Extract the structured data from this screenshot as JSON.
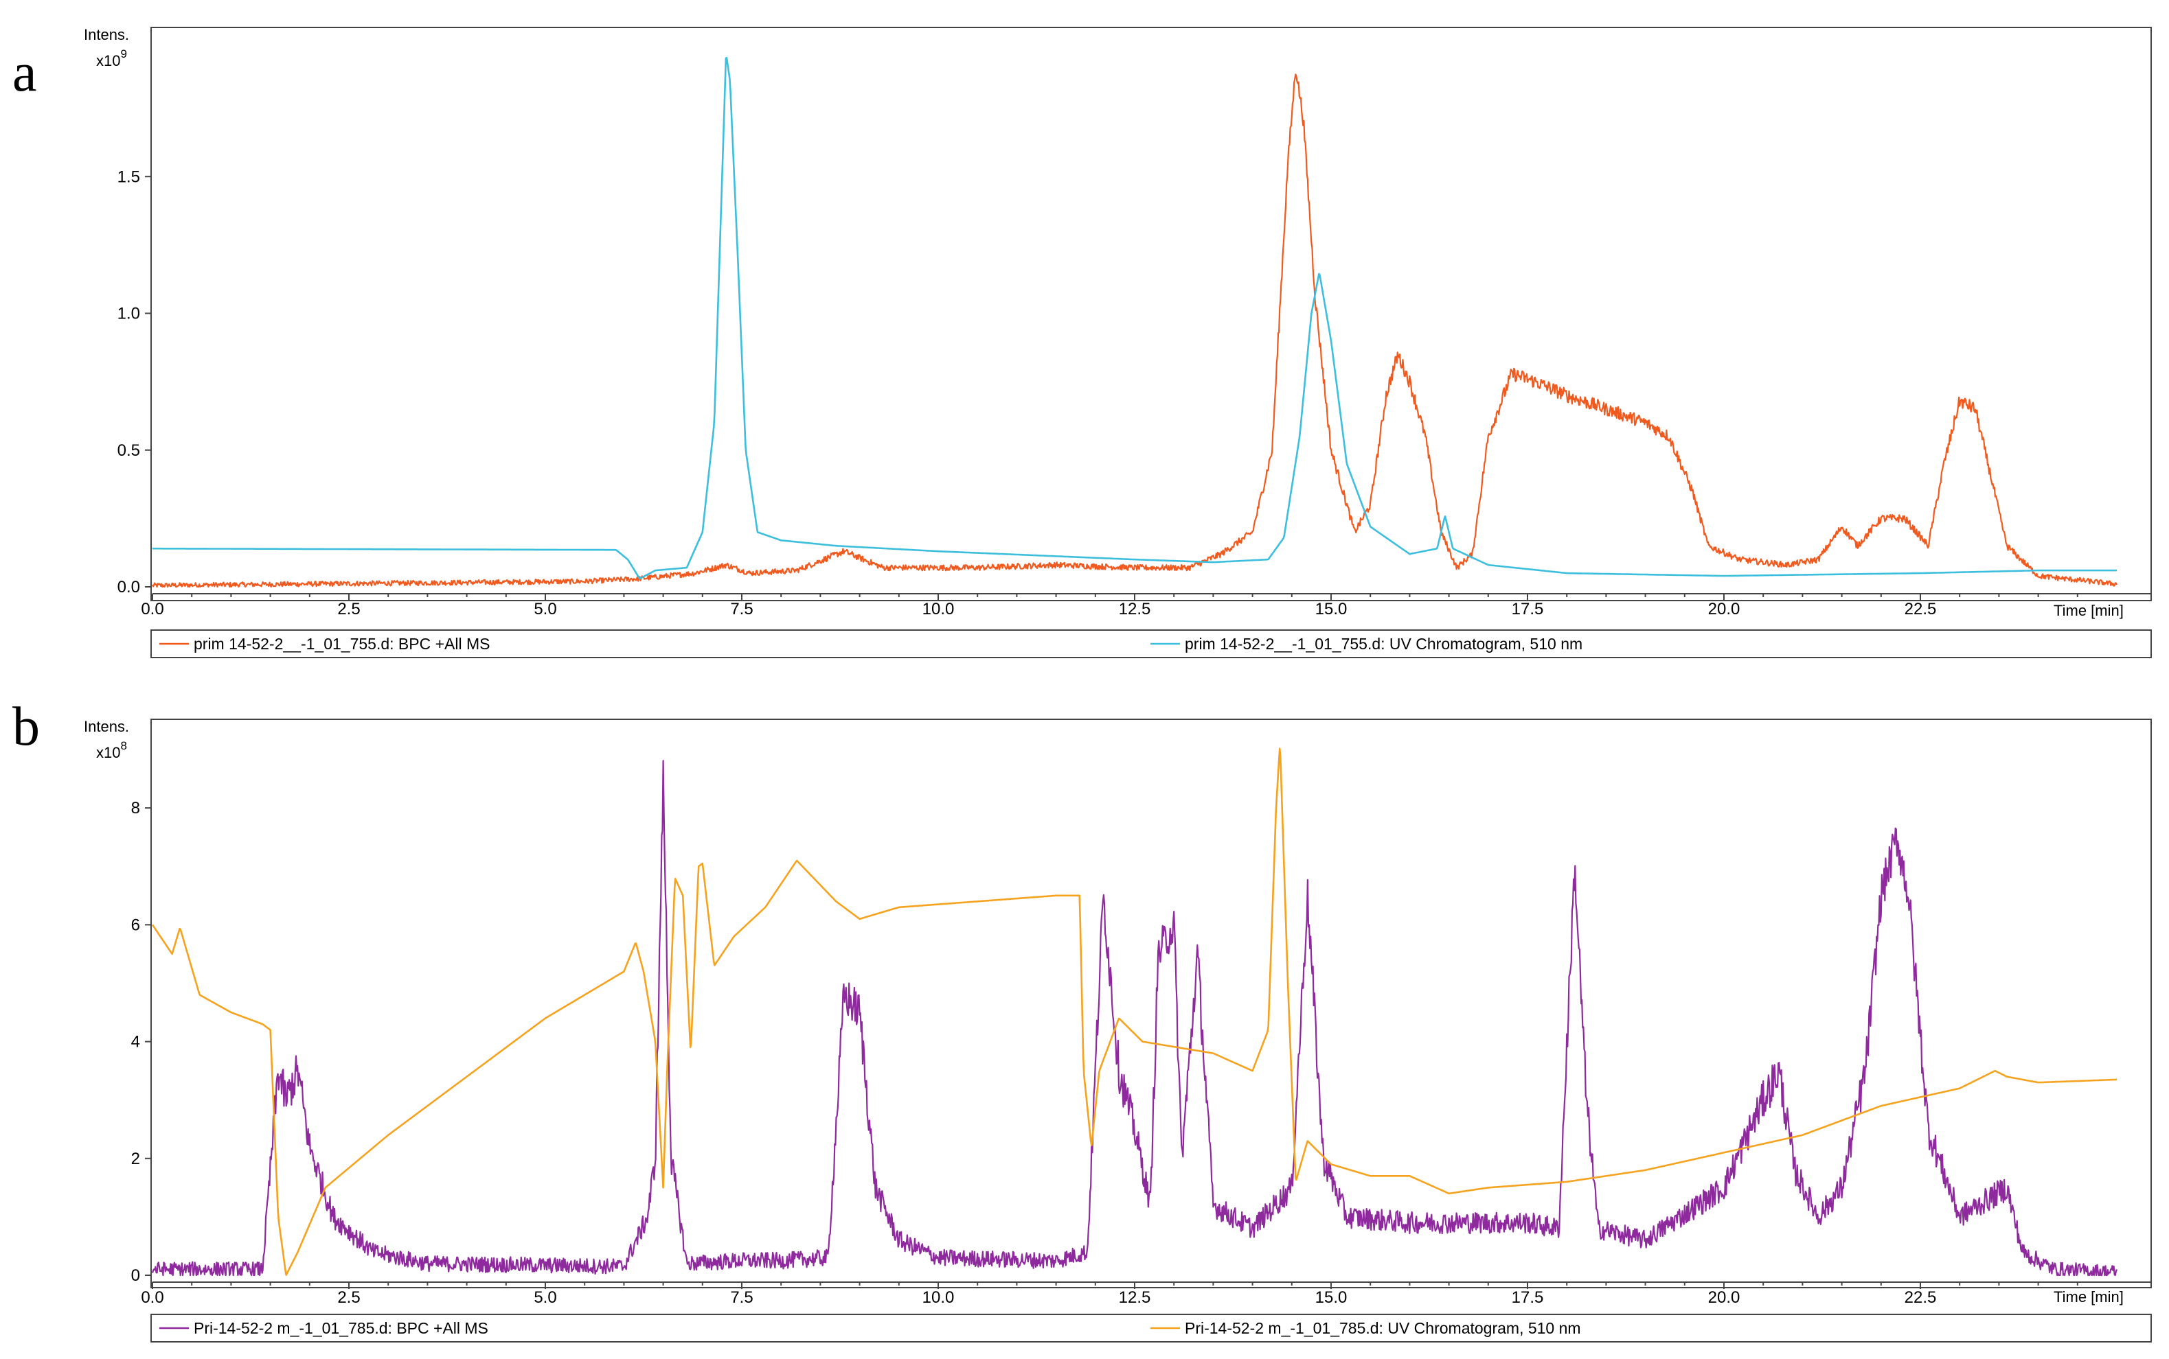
{
  "chart_data": [
    {
      "type": "line",
      "panel_label": "a",
      "ylabel": "Intens.",
      "y_multiplier": "x10",
      "y_exponent": "9",
      "xlabel": "Time [min]",
      "xlim": [
        0,
        25
      ],
      "ylim": [
        0,
        2.0
      ],
      "x_ticks": [
        "0.0",
        "2.5",
        "5.0",
        "7.5",
        "10.0",
        "12.5",
        "15.0",
        "17.5",
        "20.0",
        "22.5"
      ],
      "y_ticks": [
        "0.0",
        "0.5",
        "1.0",
        "1.5"
      ],
      "legend_position": "bottom",
      "series": [
        {
          "name": "prim 14-52-2__-1_01_755.d: BPC +All MS",
          "color": "#f05a1e",
          "noise": 0.025,
          "points": [
            [
              0,
              0.005
            ],
            [
              5.5,
              0.02
            ],
            [
              6.2,
              0.03
            ],
            [
              6.9,
              0.05
            ],
            [
              7.3,
              0.08
            ],
            [
              7.6,
              0.05
            ],
            [
              8.2,
              0.06
            ],
            [
              8.8,
              0.13
            ],
            [
              9.3,
              0.07
            ],
            [
              10.5,
              0.07
            ],
            [
              11.5,
              0.08
            ],
            [
              12.5,
              0.07
            ],
            [
              13.2,
              0.07
            ],
            [
              13.6,
              0.12
            ],
            [
              14.0,
              0.2
            ],
            [
              14.25,
              0.5
            ],
            [
              14.45,
              1.55
            ],
            [
              14.55,
              1.9
            ],
            [
              14.65,
              1.7
            ],
            [
              14.8,
              1.05
            ],
            [
              15.0,
              0.5
            ],
            [
              15.3,
              0.2
            ],
            [
              15.5,
              0.3
            ],
            [
              15.7,
              0.7
            ],
            [
              15.85,
              0.85
            ],
            [
              16.0,
              0.75
            ],
            [
              16.2,
              0.55
            ],
            [
              16.4,
              0.2
            ],
            [
              16.6,
              0.07
            ],
            [
              16.8,
              0.12
            ],
            [
              17.0,
              0.55
            ],
            [
              17.3,
              0.78
            ],
            [
              17.6,
              0.75
            ],
            [
              18.0,
              0.7
            ],
            [
              18.5,
              0.65
            ],
            [
              19.0,
              0.6
            ],
            [
              19.3,
              0.55
            ],
            [
              19.6,
              0.35
            ],
            [
              19.8,
              0.15
            ],
            [
              20.2,
              0.1
            ],
            [
              20.8,
              0.08
            ],
            [
              21.2,
              0.1
            ],
            [
              21.5,
              0.22
            ],
            [
              21.7,
              0.15
            ],
            [
              22.0,
              0.25
            ],
            [
              22.3,
              0.25
            ],
            [
              22.6,
              0.15
            ],
            [
              22.8,
              0.45
            ],
            [
              23.0,
              0.68
            ],
            [
              23.2,
              0.65
            ],
            [
              23.4,
              0.4
            ],
            [
              23.6,
              0.15
            ],
            [
              24.0,
              0.04
            ],
            [
              25.0,
              0.01
            ]
          ]
        },
        {
          "name": "prim 14-52-2__-1_01_755.d: UV Chromatogram, 510 nm",
          "color": "#3cbfdd",
          "noise": 0,
          "points": [
            [
              0,
              0.14
            ],
            [
              5.9,
              0.135
            ],
            [
              6.05,
              0.1
            ],
            [
              6.2,
              0.03
            ],
            [
              6.4,
              0.06
            ],
            [
              6.8,
              0.07
            ],
            [
              7.0,
              0.2
            ],
            [
              7.15,
              0.6
            ],
            [
              7.25,
              1.5
            ],
            [
              7.3,
              1.95
            ],
            [
              7.35,
              1.85
            ],
            [
              7.45,
              1.2
            ],
            [
              7.55,
              0.5
            ],
            [
              7.7,
              0.2
            ],
            [
              8.0,
              0.17
            ],
            [
              8.7,
              0.15
            ],
            [
              10.0,
              0.13
            ],
            [
              12.5,
              0.1
            ],
            [
              13.5,
              0.09
            ],
            [
              14.2,
              0.1
            ],
            [
              14.4,
              0.18
            ],
            [
              14.6,
              0.55
            ],
            [
              14.75,
              1.0
            ],
            [
              14.85,
              1.15
            ],
            [
              15.0,
              0.9
            ],
            [
              15.2,
              0.45
            ],
            [
              15.5,
              0.22
            ],
            [
              16.0,
              0.12
            ],
            [
              16.35,
              0.14
            ],
            [
              16.45,
              0.26
            ],
            [
              16.55,
              0.14
            ],
            [
              17.0,
              0.08
            ],
            [
              18.0,
              0.05
            ],
            [
              20.0,
              0.04
            ],
            [
              22.5,
              0.05
            ],
            [
              24.0,
              0.06
            ],
            [
              25.0,
              0.06
            ]
          ]
        }
      ]
    },
    {
      "type": "line",
      "panel_label": "b",
      "ylabel": "Intens.",
      "y_multiplier": "x10",
      "y_exponent": "8",
      "xlabel": "Time [min]",
      "xlim": [
        0,
        25
      ],
      "ylim": [
        0,
        9.4
      ],
      "x_ticks": [
        "0.0",
        "2.5",
        "5.0",
        "7.5",
        "10.0",
        "12.5",
        "15.0",
        "17.5",
        "20.0",
        "22.5"
      ],
      "y_ticks": [
        "0",
        "2",
        "4",
        "6",
        "8"
      ],
      "legend_position": "bottom",
      "series": [
        {
          "name": "Pri-14-52-2 m_-1_01_785.d: BPC +All MS",
          "color": "#8e2a9e",
          "noise": 0.35,
          "points": [
            [
              0,
              0.1
            ],
            [
              1.4,
              0.1
            ],
            [
              1.6,
              3.5
            ],
            [
              1.7,
              3.0
            ],
            [
              1.85,
              3.5
            ],
            [
              2.0,
              2.2
            ],
            [
              2.3,
              1.0
            ],
            [
              2.8,
              0.4
            ],
            [
              3.5,
              0.2
            ],
            [
              6.0,
              0.15
            ],
            [
              6.3,
              1.0
            ],
            [
              6.4,
              2.0
            ],
            [
              6.5,
              8.5
            ],
            [
              6.6,
              2.0
            ],
            [
              6.8,
              0.2
            ],
            [
              7.5,
              0.25
            ],
            [
              8.0,
              0.25
            ],
            [
              8.6,
              0.3
            ],
            [
              8.8,
              4.8
            ],
            [
              9.0,
              4.5
            ],
            [
              9.2,
              1.5
            ],
            [
              9.5,
              0.6
            ],
            [
              10.0,
              0.3
            ],
            [
              11.5,
              0.25
            ],
            [
              11.9,
              0.4
            ],
            [
              12.0,
              3.5
            ],
            [
              12.1,
              6.5
            ],
            [
              12.3,
              3.5
            ],
            [
              12.5,
              2.5
            ],
            [
              12.7,
              1.2
            ],
            [
              12.8,
              5.5
            ],
            [
              13.0,
              6.0
            ],
            [
              13.1,
              2.0
            ],
            [
              13.3,
              5.5
            ],
            [
              13.5,
              1.2
            ],
            [
              14.0,
              0.8
            ],
            [
              14.5,
              1.5
            ],
            [
              14.7,
              6.5
            ],
            [
              14.9,
              2.0
            ],
            [
              15.2,
              1.0
            ],
            [
              16.0,
              0.9
            ],
            [
              17.5,
              0.9
            ],
            [
              17.9,
              0.8
            ],
            [
              18.1,
              7.0
            ],
            [
              18.25,
              3.0
            ],
            [
              18.4,
              0.8
            ],
            [
              19.0,
              0.6
            ],
            [
              20.0,
              1.5
            ],
            [
              20.5,
              3.0
            ],
            [
              20.7,
              3.5
            ],
            [
              20.9,
              1.8
            ],
            [
              21.2,
              1.0
            ],
            [
              21.5,
              1.5
            ],
            [
              21.8,
              3.5
            ],
            [
              22.0,
              6.5
            ],
            [
              22.2,
              7.5
            ],
            [
              22.35,
              6.5
            ],
            [
              22.6,
              2.5
            ],
            [
              23.0,
              1.0
            ],
            [
              23.6,
              1.5
            ],
            [
              23.8,
              0.4
            ],
            [
              24.2,
              0.1
            ],
            [
              25.0,
              0.05
            ]
          ]
        },
        {
          "name": "Pri-14-52-2 m_-1_01_785.d: UV Chromatogram, 510 nm",
          "color": "#f5a31f",
          "noise": 0,
          "points": [
            [
              0,
              6.0
            ],
            [
              0.25,
              5.5
            ],
            [
              0.35,
              5.95
            ],
            [
              0.6,
              4.8
            ],
            [
              1.0,
              4.5
            ],
            [
              1.4,
              4.3
            ],
            [
              1.5,
              4.2
            ],
            [
              1.6,
              1.0
            ],
            [
              1.7,
              0.0
            ],
            [
              1.85,
              0.4
            ],
            [
              2.2,
              1.5
            ],
            [
              3.0,
              2.4
            ],
            [
              4.0,
              3.4
            ],
            [
              5.0,
              4.4
            ],
            [
              6.0,
              5.2
            ],
            [
              6.15,
              5.7
            ],
            [
              6.25,
              5.2
            ],
            [
              6.4,
              4.0
            ],
            [
              6.5,
              1.5
            ],
            [
              6.55,
              3.5
            ],
            [
              6.65,
              6.8
            ],
            [
              6.75,
              6.5
            ],
            [
              6.85,
              3.8
            ],
            [
              6.95,
              7.0
            ],
            [
              7.0,
              7.05
            ],
            [
              7.15,
              5.3
            ],
            [
              7.4,
              5.8
            ],
            [
              7.8,
              6.3
            ],
            [
              8.2,
              7.1
            ],
            [
              8.7,
              6.4
            ],
            [
              9.0,
              6.1
            ],
            [
              9.5,
              6.3
            ],
            [
              10.5,
              6.4
            ],
            [
              11.5,
              6.5
            ],
            [
              11.8,
              6.5
            ],
            [
              11.85,
              3.5
            ],
            [
              11.95,
              2.2
            ],
            [
              12.05,
              3.5
            ],
            [
              12.3,
              4.4
            ],
            [
              12.6,
              4.0
            ],
            [
              13.5,
              3.8
            ],
            [
              14.0,
              3.5
            ],
            [
              14.2,
              4.2
            ],
            [
              14.3,
              8.0
            ],
            [
              14.35,
              9.1
            ],
            [
              14.45,
              5.0
            ],
            [
              14.55,
              1.6
            ],
            [
              14.7,
              2.3
            ],
            [
              15.0,
              1.9
            ],
            [
              15.5,
              1.7
            ],
            [
              16.0,
              1.7
            ],
            [
              16.5,
              1.4
            ],
            [
              17.0,
              1.5
            ],
            [
              18.0,
              1.6
            ],
            [
              19.0,
              1.8
            ],
            [
              20.0,
              2.1
            ],
            [
              21.0,
              2.4
            ],
            [
              22.0,
              2.9
            ],
            [
              23.0,
              3.2
            ],
            [
              23.45,
              3.5
            ],
            [
              23.6,
              3.4
            ],
            [
              24.0,
              3.3
            ],
            [
              25.0,
              3.35
            ]
          ]
        }
      ]
    }
  ]
}
